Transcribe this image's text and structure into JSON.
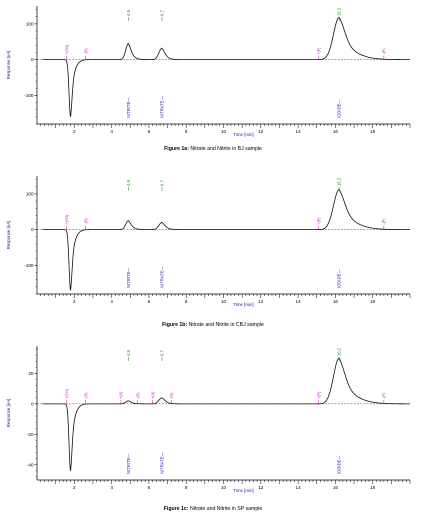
{
  "chart_data": [
    {
      "type": "line",
      "caption_bold": "Figure 1a:",
      "caption_text": " Nitrate and Nitrite in BJ sample",
      "xlabel": "Time [min]",
      "ylabel": "Response [nA]",
      "xlim": [
        0,
        20
      ],
      "ylim": [
        -180,
        150
      ],
      "x_ticks": [
        2,
        4,
        6,
        8,
        10,
        12,
        14,
        16,
        18
      ],
      "y_ticks": [
        100,
        0,
        -100
      ],
      "y_tick_labels": [
        "100",
        "0",
        "-100"
      ],
      "baseline": 0,
      "peaks": [
        {
          "rt": 1.8,
          "height": -160,
          "width": 0.08,
          "tail": 0.25
        },
        {
          "rt": 4.9,
          "height": 45,
          "width": 0.14,
          "tail": 0.3
        },
        {
          "rt": 6.7,
          "height": 32,
          "width": 0.16,
          "tail": 0.3
        },
        {
          "rt": 16.2,
          "height": 118,
          "width": 0.3,
          "tail": 0.9
        }
      ],
      "retention_labels": [
        {
          "x": 4.9,
          "text": "4.9"
        },
        {
          "x": 6.7,
          "text": "6.7"
        },
        {
          "x": 16.2,
          "text": "16.2"
        }
      ],
      "events": [
        {
          "x": 1.6,
          "text": "+(TO)"
        },
        {
          "x": 2.6,
          "text": "-(S)"
        },
        {
          "x": 15.1,
          "text": "+(F)"
        },
        {
          "x": 18.6,
          "text": "-(F)"
        }
      ],
      "peak_names": [
        {
          "x": 4.9,
          "text": "NITRITE"
        },
        {
          "x": 6.7,
          "text": "NITRATE"
        },
        {
          "x": 16.2,
          "text": "IODIDE"
        }
      ]
    },
    {
      "type": "line",
      "caption_bold": "Figure 1b:",
      "caption_text": " Nitrate and Nitrite in CBJ sample",
      "xlabel": "Time [min]",
      "ylabel": "Response [nA]",
      "xlim": [
        0,
        20
      ],
      "ylim": [
        -180,
        150
      ],
      "x_ticks": [
        2,
        4,
        6,
        8,
        10,
        12,
        14,
        16,
        18
      ],
      "y_ticks": [
        100,
        0,
        -100
      ],
      "y_tick_labels": [
        "100",
        "0",
        "-100"
      ],
      "baseline": 0,
      "peaks": [
        {
          "rt": 1.8,
          "height": -170,
          "width": 0.08,
          "tail": 0.25
        },
        {
          "rt": 4.9,
          "height": 25,
          "width": 0.14,
          "tail": 0.3
        },
        {
          "rt": 6.7,
          "height": 20,
          "width": 0.16,
          "tail": 0.3
        },
        {
          "rt": 16.2,
          "height": 112,
          "width": 0.3,
          "tail": 0.9
        }
      ],
      "retention_labels": [
        {
          "x": 4.9,
          "text": "4.9"
        },
        {
          "x": 6.7,
          "text": "6.7"
        },
        {
          "x": 16.2,
          "text": "16.2"
        }
      ],
      "events": [
        {
          "x": 1.6,
          "text": "+(TO)"
        },
        {
          "x": 2.6,
          "text": "-(S)"
        },
        {
          "x": 15.1,
          "text": "+(F)"
        },
        {
          "x": 18.6,
          "text": "-(F)"
        }
      ],
      "peak_names": [
        {
          "x": 4.9,
          "text": "NITRITE"
        },
        {
          "x": 6.7,
          "text": "NITRATE"
        },
        {
          "x": 16.2,
          "text": "IODIDE"
        }
      ]
    },
    {
      "type": "line",
      "caption_bold": "Figure 1c:",
      "caption_text": " Nitrate and Nitrite in SP sample",
      "xlabel": "Time [min]",
      "ylabel": "Response [nA]",
      "xlim": [
        0,
        20
      ],
      "ylim": [
        -50,
        38
      ],
      "x_ticks": [
        2,
        4,
        6,
        8,
        10,
        12,
        14,
        16,
        18
      ],
      "y_ticks": [
        20,
        0,
        -20,
        -40
      ],
      "y_tick_labels": [
        "20",
        "0",
        "-20",
        "-40"
      ],
      "baseline": 0,
      "peaks": [
        {
          "rt": 1.8,
          "height": -44,
          "width": 0.08,
          "tail": 0.25
        },
        {
          "rt": 4.9,
          "height": 2,
          "width": 0.14,
          "tail": 0.3
        },
        {
          "rt": 6.7,
          "height": 4,
          "width": 0.16,
          "tail": 0.3
        },
        {
          "rt": 16.2,
          "height": 30,
          "width": 0.3,
          "tail": 0.9
        }
      ],
      "retention_labels": [
        {
          "x": 4.9,
          "text": "4.9"
        },
        {
          "x": 6.7,
          "text": "6.7"
        },
        {
          "x": 16.2,
          "text": "16.2"
        }
      ],
      "events": [
        {
          "x": 1.6,
          "text": "+(TO)"
        },
        {
          "x": 2.6,
          "text": "-(S)"
        },
        {
          "x": 4.5,
          "text": "+(S)"
        },
        {
          "x": 5.4,
          "text": "-(S)"
        },
        {
          "x": 6.2,
          "text": "+(S)"
        },
        {
          "x": 7.2,
          "text": "-(S)"
        },
        {
          "x": 15.1,
          "text": "+(F)"
        },
        {
          "x": 18.6,
          "text": "-(F)"
        }
      ],
      "peak_names": [
        {
          "x": 4.9,
          "text": "NITRITE"
        },
        {
          "x": 6.7,
          "text": "NITRATE"
        },
        {
          "x": 16.2,
          "text": "IODIDE"
        }
      ]
    }
  ]
}
